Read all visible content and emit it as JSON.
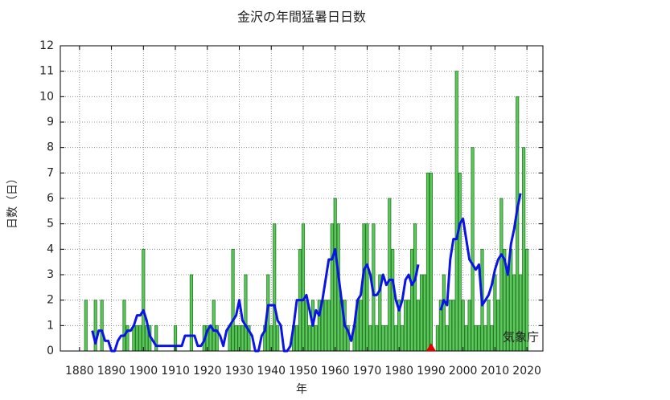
{
  "chart_data": {
    "type": "bar",
    "title": "金沢の年間猛暑日日数",
    "xlabel": "年",
    "ylabel": "日数（日）",
    "annotation": "気象庁",
    "xlim": [
      1874,
      2025
    ],
    "ylim": [
      0,
      12
    ],
    "xticks": [
      1880,
      1890,
      1900,
      1910,
      1920,
      1930,
      1940,
      1950,
      1960,
      1970,
      1980,
      1990,
      2000,
      2010,
      2020
    ],
    "yticks": [
      0,
      1,
      2,
      3,
      4,
      5,
      6,
      7,
      8,
      9,
      10,
      11,
      12
    ],
    "grid": true,
    "marker_x": 1990,
    "marker_color": "#e00000",
    "series": [
      {
        "type": "bar",
        "color": "#5cc85c",
        "edge_color": "#237a23",
        "x": [
          1882,
          1883,
          1884,
          1885,
          1886,
          1887,
          1888,
          1889,
          1890,
          1891,
          1892,
          1893,
          1894,
          1895,
          1896,
          1897,
          1898,
          1899,
          1900,
          1901,
          1902,
          1903,
          1904,
          1905,
          1906,
          1907,
          1908,
          1909,
          1910,
          1911,
          1912,
          1913,
          1914,
          1915,
          1916,
          1917,
          1918,
          1919,
          1920,
          1921,
          1922,
          1923,
          1924,
          1925,
          1926,
          1927,
          1928,
          1929,
          1930,
          1931,
          1932,
          1933,
          1934,
          1935,
          1936,
          1937,
          1938,
          1939,
          1940,
          1941,
          1942,
          1943,
          1944,
          1945,
          1946,
          1947,
          1948,
          1949,
          1950,
          1951,
          1952,
          1953,
          1954,
          1955,
          1956,
          1957,
          1958,
          1959,
          1960,
          1961,
          1962,
          1963,
          1964,
          1965,
          1966,
          1967,
          1968,
          1969,
          1970,
          1971,
          1972,
          1973,
          1974,
          1975,
          1976,
          1977,
          1978,
          1979,
          1980,
          1981,
          1982,
          1983,
          1984,
          1985,
          1986,
          1987,
          1988,
          1989,
          1990,
          1991,
          1992,
          1993,
          1994,
          1995,
          1996,
          1997,
          1998,
          1999,
          2000,
          2001,
          2002,
          2003,
          2004,
          2005,
          2006,
          2007,
          2008,
          2009,
          2010,
          2011,
          2012,
          2013,
          2014,
          2015,
          2016,
          2017,
          2018,
          2019,
          2020
        ],
        "values": [
          2,
          0,
          0,
          2,
          0,
          2,
          0,
          0,
          0,
          0,
          0,
          0,
          2,
          1,
          0,
          1,
          1,
          1,
          4,
          1,
          1,
          0,
          1,
          0,
          0,
          0,
          0,
          0,
          1,
          0,
          0,
          0,
          0,
          3,
          0,
          0,
          0,
          1,
          1,
          1,
          2,
          1,
          0,
          0,
          0,
          1,
          4,
          1,
          1,
          1,
          3,
          1,
          0,
          0,
          0,
          0,
          1,
          3,
          1,
          5,
          1,
          0,
          0,
          0,
          0,
          1,
          1,
          4,
          5,
          2,
          1,
          2,
          1,
          2,
          2,
          2,
          2,
          5,
          6,
          5,
          2,
          2,
          1,
          0,
          1,
          2,
          2,
          5,
          5,
          1,
          5,
          1,
          3,
          1,
          1,
          6,
          4,
          1,
          2,
          1,
          2,
          2,
          4,
          5,
          2,
          3,
          3,
          7,
          7,
          0,
          1,
          2,
          3,
          1,
          2,
          2,
          11,
          7,
          2,
          1,
          2,
          8,
          1,
          1,
          4,
          1,
          2,
          1,
          3,
          2,
          6,
          4,
          3,
          4,
          3,
          10,
          3,
          8,
          4
        ]
      },
      {
        "type": "line",
        "color": "#0a14e6",
        "x": [
          1884,
          1885,
          1886,
          1887,
          1888,
          1889,
          1890,
          1891,
          1892,
          1893,
          1894,
          1895,
          1896,
          1897,
          1898,
          1899,
          1900,
          1901,
          1902,
          1903,
          1904,
          1905,
          1906,
          1907,
          1908,
          1909,
          1910,
          1911,
          1912,
          1913,
          1914,
          1915,
          1916,
          1917,
          1918,
          1919,
          1920,
          1921,
          1922,
          1923,
          1924,
          1925,
          1926,
          1927,
          1928,
          1929,
          1930,
          1931,
          1932,
          1933,
          1934,
          1935,
          1936,
          1937,
          1938,
          1939,
          1940,
          1941,
          1942,
          1943,
          1944,
          1945,
          1946,
          1947,
          1948,
          1949,
          1950,
          1951,
          1952,
          1953,
          1954,
          1955,
          1956,
          1957,
          1958,
          1959,
          1960,
          1961,
          1962,
          1963,
          1964,
          1965,
          1966,
          1967,
          1968,
          1969,
          1970,
          1971,
          1972,
          1973,
          1974,
          1975,
          1976,
          1977,
          1978,
          1979,
          1980,
          1981,
          1982,
          1983,
          1984,
          1985,
          1986,
          1987,
          1988,
          1989,
          1990,
          1991,
          1992,
          1993,
          1994,
          1995,
          1996,
          1997,
          1998,
          1999,
          2000,
          2001,
          2002,
          2003,
          2004,
          2005,
          2006,
          2007,
          2008,
          2009,
          2010,
          2011,
          2012,
          2013,
          2014,
          2015,
          2016,
          2017,
          2018
        ],
        "values": [
          0.8,
          0.3,
          0.8,
          0.8,
          0.4,
          0.4,
          0,
          0,
          0.4,
          0.6,
          0.6,
          0.8,
          0.8,
          1.0,
          1.4,
          1.4,
          1.6,
          1.2,
          0.6,
          0.4,
          0.2,
          0.2,
          0.2,
          0.2,
          0.2,
          0.2,
          0.2,
          0.2,
          0.2,
          0.6,
          0.6,
          0.6,
          0.6,
          0.2,
          0.2,
          0.4,
          0.8,
          1.0,
          0.8,
          0.8,
          0.6,
          0.2,
          0.8,
          1.0,
          1.2,
          1.4,
          2.0,
          1.2,
          1.0,
          0.8,
          0.6,
          0,
          0,
          0.6,
          0.8,
          1.8,
          1.8,
          1.8,
          1.2,
          1.0,
          0,
          0,
          0.2,
          1.0,
          2.0,
          2.0,
          2.0,
          2.2,
          1.6,
          1.0,
          1.6,
          1.4,
          2.0,
          2.8,
          3.6,
          3.6,
          4.0,
          3.0,
          2.0,
          1.0,
          0.8,
          0.4,
          1.0,
          2.0,
          2.2,
          3.2,
          3.4,
          3.0,
          2.2,
          2.2,
          2.4,
          3.0,
          2.6,
          2.8,
          2.8,
          2.0,
          1.6,
          2.0,
          2.8,
          3.0,
          2.6,
          2.8,
          3.4,
          null,
          null,
          null,
          null,
          null,
          null,
          1.6,
          2.0,
          1.8,
          3.6,
          4.4,
          4.4,
          5.0,
          5.2,
          4.4,
          3.6,
          3.4,
          3.2,
          3.4,
          1.8,
          2.0,
          2.2,
          2.6,
          3.2,
          3.6,
          3.8,
          3.6,
          3.0,
          4.2,
          4.8,
          5.6,
          6.2
        ]
      }
    ]
  }
}
